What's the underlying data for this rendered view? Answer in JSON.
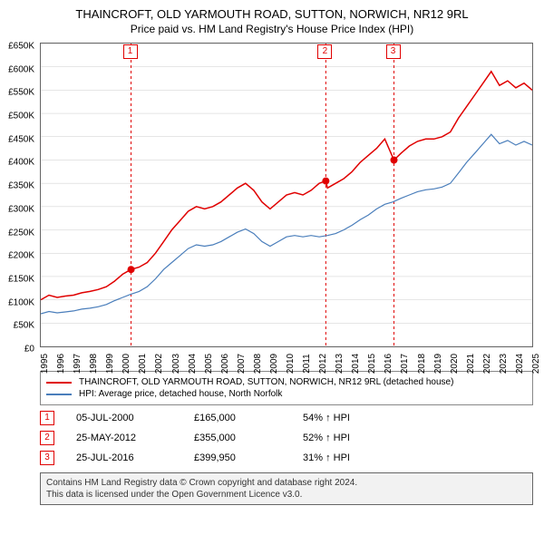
{
  "title": "THAINCROFT, OLD YARMOUTH ROAD, SUTTON, NORWICH, NR12 9RL",
  "subtitle": "Price paid vs. HM Land Registry's House Price Index (HPI)",
  "chart": {
    "type": "line",
    "background_color": "#ffffff",
    "border_color": "#666666",
    "grid_color": "#cccccc",
    "ylim": [
      0,
      650000
    ],
    "ytick_step": 50000,
    "y_prefix": "£",
    "y_suffix": "K",
    "y_divisor": 1000,
    "xlim": [
      1995,
      2025
    ],
    "xtick_step": 1,
    "label_fontsize": 10,
    "series": [
      {
        "name": "THAINCROFT, OLD YARMOUTH ROAD, SUTTON, NORWICH, NR12 9RL (detached house)",
        "color": "#e00000",
        "width": 1.5,
        "data": [
          [
            1995.0,
            100000
          ],
          [
            1995.5,
            110000
          ],
          [
            1996.0,
            105000
          ],
          [
            1996.5,
            108000
          ],
          [
            1997.0,
            110000
          ],
          [
            1997.5,
            115000
          ],
          [
            1998.0,
            118000
          ],
          [
            1998.5,
            122000
          ],
          [
            1999.0,
            128000
          ],
          [
            1999.5,
            140000
          ],
          [
            2000.0,
            155000
          ],
          [
            2000.5,
            165000
          ],
          [
            2001.0,
            170000
          ],
          [
            2001.5,
            180000
          ],
          [
            2002.0,
            200000
          ],
          [
            2002.5,
            225000
          ],
          [
            2003.0,
            250000
          ],
          [
            2003.5,
            270000
          ],
          [
            2004.0,
            290000
          ],
          [
            2004.5,
            300000
          ],
          [
            2005.0,
            295000
          ],
          [
            2005.5,
            300000
          ],
          [
            2006.0,
            310000
          ],
          [
            2006.5,
            325000
          ],
          [
            2007.0,
            340000
          ],
          [
            2007.5,
            350000
          ],
          [
            2008.0,
            335000
          ],
          [
            2008.5,
            310000
          ],
          [
            2009.0,
            295000
          ],
          [
            2009.5,
            310000
          ],
          [
            2010.0,
            325000
          ],
          [
            2010.5,
            330000
          ],
          [
            2011.0,
            325000
          ],
          [
            2011.5,
            335000
          ],
          [
            2012.0,
            350000
          ],
          [
            2012.4,
            355000
          ],
          [
            2012.5,
            340000
          ],
          [
            2013.0,
            350000
          ],
          [
            2013.5,
            360000
          ],
          [
            2014.0,
            375000
          ],
          [
            2014.5,
            395000
          ],
          [
            2015.0,
            410000
          ],
          [
            2015.5,
            425000
          ],
          [
            2016.0,
            445000
          ],
          [
            2016.56,
            399950
          ],
          [
            2017.0,
            415000
          ],
          [
            2017.5,
            430000
          ],
          [
            2018.0,
            440000
          ],
          [
            2018.5,
            445000
          ],
          [
            2019.0,
            445000
          ],
          [
            2019.5,
            450000
          ],
          [
            2020.0,
            460000
          ],
          [
            2020.5,
            490000
          ],
          [
            2021.0,
            515000
          ],
          [
            2021.5,
            540000
          ],
          [
            2022.0,
            565000
          ],
          [
            2022.5,
            590000
          ],
          [
            2023.0,
            560000
          ],
          [
            2023.5,
            570000
          ],
          [
            2024.0,
            555000
          ],
          [
            2024.5,
            565000
          ],
          [
            2025.0,
            550000
          ]
        ]
      },
      {
        "name": "HPI: Average price, detached house, North Norfolk",
        "color": "#4a7ebb",
        "width": 1.2,
        "data": [
          [
            1995.0,
            70000
          ],
          [
            1995.5,
            75000
          ],
          [
            1996.0,
            72000
          ],
          [
            1996.5,
            74000
          ],
          [
            1997.0,
            76000
          ],
          [
            1997.5,
            80000
          ],
          [
            1998.0,
            82000
          ],
          [
            1998.5,
            85000
          ],
          [
            1999.0,
            90000
          ],
          [
            1999.5,
            98000
          ],
          [
            2000.0,
            105000
          ],
          [
            2000.5,
            112000
          ],
          [
            2001.0,
            118000
          ],
          [
            2001.5,
            128000
          ],
          [
            2002.0,
            145000
          ],
          [
            2002.5,
            165000
          ],
          [
            2003.0,
            180000
          ],
          [
            2003.5,
            195000
          ],
          [
            2004.0,
            210000
          ],
          [
            2004.5,
            218000
          ],
          [
            2005.0,
            215000
          ],
          [
            2005.5,
            218000
          ],
          [
            2006.0,
            225000
          ],
          [
            2006.5,
            235000
          ],
          [
            2007.0,
            245000
          ],
          [
            2007.5,
            252000
          ],
          [
            2008.0,
            242000
          ],
          [
            2008.5,
            225000
          ],
          [
            2009.0,
            215000
          ],
          [
            2009.5,
            225000
          ],
          [
            2010.0,
            235000
          ],
          [
            2010.5,
            238000
          ],
          [
            2011.0,
            235000
          ],
          [
            2011.5,
            238000
          ],
          [
            2012.0,
            235000
          ],
          [
            2012.5,
            238000
          ],
          [
            2013.0,
            242000
          ],
          [
            2013.5,
            250000
          ],
          [
            2014.0,
            260000
          ],
          [
            2014.5,
            272000
          ],
          [
            2015.0,
            282000
          ],
          [
            2015.5,
            295000
          ],
          [
            2016.0,
            305000
          ],
          [
            2016.5,
            310000
          ],
          [
            2017.0,
            318000
          ],
          [
            2017.5,
            325000
          ],
          [
            2018.0,
            332000
          ],
          [
            2018.5,
            336000
          ],
          [
            2019.0,
            338000
          ],
          [
            2019.5,
            342000
          ],
          [
            2020.0,
            350000
          ],
          [
            2020.5,
            372000
          ],
          [
            2021.0,
            395000
          ],
          [
            2021.5,
            415000
          ],
          [
            2022.0,
            435000
          ],
          [
            2022.5,
            455000
          ],
          [
            2023.0,
            435000
          ],
          [
            2023.5,
            442000
          ],
          [
            2024.0,
            432000
          ],
          [
            2024.5,
            440000
          ],
          [
            2025.0,
            432000
          ]
        ]
      }
    ],
    "sale_points": [
      {
        "n": 1,
        "x": 2000.51,
        "y": 165000,
        "color": "#e00000"
      },
      {
        "n": 2,
        "x": 2012.4,
        "y": 355000,
        "color": "#e00000"
      },
      {
        "n": 3,
        "x": 2016.56,
        "y": 399950,
        "color": "#e00000"
      }
    ],
    "vlines_color": "#e00000",
    "vlines_dash": "3,3"
  },
  "legend": {
    "border_color": "#888888",
    "items": [
      {
        "color": "#e00000",
        "label": "THAINCROFT, OLD YARMOUTH ROAD, SUTTON, NORWICH, NR12 9RL (detached house)"
      },
      {
        "color": "#4a7ebb",
        "label": "HPI: Average price, detached house, North Norfolk"
      }
    ]
  },
  "annotations": [
    {
      "n": "1",
      "date": "05-JUL-2000",
      "price": "£165,000",
      "pct": "54% ↑ HPI"
    },
    {
      "n": "2",
      "date": "25-MAY-2012",
      "price": "£355,000",
      "pct": "52% ↑ HPI"
    },
    {
      "n": "3",
      "date": "25-JUL-2016",
      "price": "£399,950",
      "pct": "31% ↑ HPI"
    }
  ],
  "footer": {
    "line1": "Contains HM Land Registry data © Crown copyright and database right 2024.",
    "line2": "This data is licensed under the Open Government Licence v3.0."
  }
}
